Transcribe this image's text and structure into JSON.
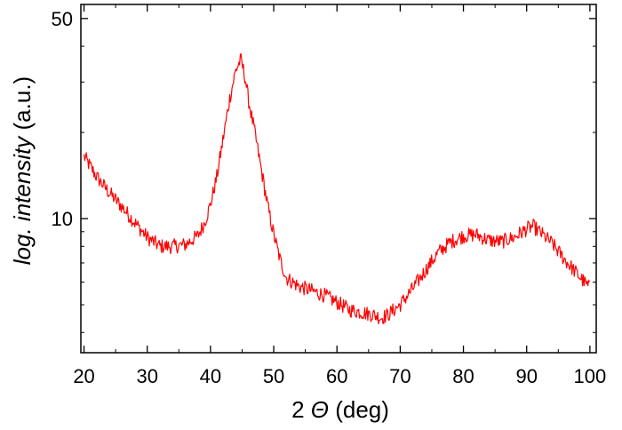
{
  "chart_data": {
    "type": "line",
    "title": "",
    "xlabel": {
      "prefix": "2 ",
      "symbol": "Θ",
      "suffix": " (deg)"
    },
    "ylabel": {
      "prefix": "log. intensity",
      "suffix": " (a.u.)"
    },
    "xlim": [
      19.5,
      101
    ],
    "ylim": [
      3.4,
      56
    ],
    "yscale": "log",
    "xticks": [
      20,
      30,
      40,
      50,
      60,
      70,
      80,
      90,
      100
    ],
    "xtick_labels": [
      "20",
      "30",
      "40",
      "50",
      "60",
      "70",
      "80",
      "90",
      "100"
    ],
    "yticks_labeled": [
      10,
      50
    ],
    "ytick_labels": [
      "10",
      "50"
    ],
    "grid": false,
    "line_color": "#ff0000",
    "series": [
      {
        "x": [
          20,
          22,
          24,
          26,
          28,
          30,
          32,
          34,
          36,
          38,
          39,
          40,
          41,
          42,
          43,
          44,
          44.8,
          45.5,
          46,
          47,
          48,
          49,
          50,
          51,
          52,
          54,
          56,
          58,
          60,
          62,
          64,
          66,
          67,
          68,
          70,
          72,
          74,
          76,
          78,
          80,
          82,
          84,
          86,
          88,
          90,
          91,
          92,
          94,
          96,
          98,
          100
        ],
        "y": [
          16.5,
          14,
          12.3,
          11,
          9.7,
          8.6,
          8,
          8,
          8.1,
          8.7,
          9.6,
          11.2,
          14,
          19,
          26,
          33,
          36,
          31,
          26,
          20,
          15,
          11.2,
          8.8,
          7.2,
          6.2,
          5.8,
          5.6,
          5.4,
          5.1,
          4.8,
          4.7,
          4.6,
          4.5,
          4.6,
          5,
          5.7,
          6.6,
          7.6,
          8.3,
          8.7,
          8.8,
          8.4,
          8.3,
          8.6,
          9.2,
          9.4,
          9,
          8.2,
          7.2,
          6.4,
          5.7
        ]
      }
    ]
  }
}
